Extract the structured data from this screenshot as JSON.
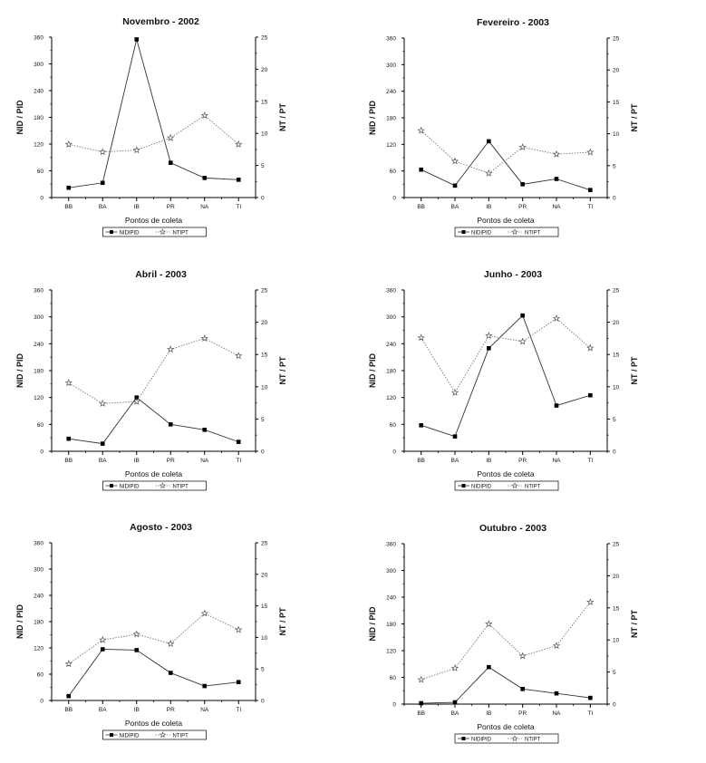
{
  "chart_data": [
    {
      "type": "line",
      "title": "Novembro - 2002",
      "xlabel": "Pontos de coleta",
      "ylabel_left": "NID / PID",
      "ylabel_right": "NT / PT",
      "categories": [
        "BB",
        "BA",
        "IB",
        "PR",
        "NA",
        "TI"
      ],
      "ylim_left": [
        0,
        360
      ],
      "yticks_left": [
        "0",
        "60",
        "120",
        "180",
        "240",
        "300",
        "360"
      ],
      "ylim_right": [
        0,
        25
      ],
      "yticks_right": [
        "0",
        "5",
        "10",
        "15",
        "20",
        "25"
      ],
      "legend": [
        "NIDIPID",
        "NTIPT"
      ],
      "series": [
        {
          "name": "NIDIPID",
          "axis": "left",
          "marker": "square",
          "values": [
            22,
            33,
            355,
            78,
            44,
            40
          ]
        },
        {
          "name": "NTIPT",
          "axis": "right",
          "marker": "star",
          "values": [
            8.3,
            7.1,
            7.4,
            9.3,
            12.8,
            8.3
          ]
        }
      ]
    },
    {
      "type": "line",
      "title": "Fevereiro - 2003",
      "xlabel": "Pontos de coleta",
      "ylabel_left": "NID / PID",
      "ylabel_right": "NT / PT",
      "categories": [
        "BB",
        "BA",
        "IB",
        "PR",
        "NA",
        "TI"
      ],
      "ylim_left": [
        0,
        360
      ],
      "yticks_left": [
        "0",
        "60",
        "120",
        "180",
        "240",
        "300",
        "360"
      ],
      "ylim_right": [
        0,
        25
      ],
      "yticks_right": [
        "0",
        "5",
        "10",
        "15",
        "20",
        "25"
      ],
      "legend": [
        "NIDIPID",
        "NTIPT"
      ],
      "series": [
        {
          "name": "NIDIPID",
          "axis": "left",
          "marker": "square",
          "values": [
            63,
            27,
            127,
            30,
            42,
            17
          ]
        },
        {
          "name": "NTIPT",
          "axis": "right",
          "marker": "star",
          "values": [
            10.5,
            5.7,
            3.8,
            7.9,
            6.8,
            7.1
          ]
        }
      ]
    },
    {
      "type": "line",
      "title": "Abril - 2003",
      "xlabel": "Pontos de coleta",
      "ylabel_left": "NID / PID",
      "ylabel_right": "NT / PT",
      "categories": [
        "BB",
        "BA",
        "IB",
        "PR",
        "NA",
        "TI"
      ],
      "ylim_left": [
        0,
        360
      ],
      "yticks_left": [
        "0",
        "60",
        "120",
        "180",
        "240",
        "300",
        "360"
      ],
      "ylim_right": [
        0,
        25
      ],
      "yticks_right": [
        "0",
        "5",
        "10",
        "15",
        "20",
        "25"
      ],
      "legend": [
        "NIDIPID",
        "NTIPT"
      ],
      "series": [
        {
          "name": "NIDIPID",
          "axis": "left",
          "marker": "square",
          "values": [
            28,
            17,
            120,
            60,
            48,
            21
          ]
        },
        {
          "name": "NTIPT",
          "axis": "right",
          "marker": "star",
          "values": [
            10.6,
            7.4,
            7.7,
            15.8,
            17.5,
            14.8
          ]
        }
      ]
    },
    {
      "type": "line",
      "title": "Junho - 2003",
      "xlabel": "Pontos de coleta",
      "ylabel_left": "NID / PID",
      "ylabel_right": "NT / PT",
      "categories": [
        "BB",
        "BA",
        "IB",
        "PR",
        "NA",
        "TI"
      ],
      "ylim_left": [
        0,
        360
      ],
      "yticks_left": [
        "0",
        "60",
        "120",
        "180",
        "240",
        "300",
        "360"
      ],
      "ylim_right": [
        0,
        25
      ],
      "yticks_right": [
        "0",
        "5",
        "10",
        "15",
        "20",
        "25"
      ],
      "legend": [
        "NIDIPID",
        "NTIPT"
      ],
      "series": [
        {
          "name": "NIDIPID",
          "axis": "left",
          "marker": "square",
          "values": [
            58,
            33,
            230,
            303,
            102,
            125
          ]
        },
        {
          "name": "NTIPT",
          "axis": "right",
          "marker": "star",
          "values": [
            17.6,
            9.1,
            17.9,
            17.0,
            20.6,
            16.0
          ]
        }
      ]
    },
    {
      "type": "line",
      "title": "Agosto - 2003",
      "xlabel": "Pontos de coleta",
      "ylabel_left": "NID / PID",
      "ylabel_right": "NT / PT",
      "categories": [
        "BB",
        "BA",
        "IB",
        "PR",
        "NA",
        "TI"
      ],
      "ylim_left": [
        0,
        360
      ],
      "yticks_left": [
        "0",
        "60",
        "120",
        "180",
        "240",
        "300",
        "360"
      ],
      "ylim_right": [
        0,
        25
      ],
      "yticks_right": [
        "0",
        "5",
        "10",
        "15",
        "20",
        "25"
      ],
      "legend": [
        "NIDIPID",
        "NTIPT"
      ],
      "series": [
        {
          "name": "NIDIPID",
          "axis": "left",
          "marker": "square",
          "values": [
            10,
            117,
            115,
            63,
            33,
            42
          ]
        },
        {
          "name": "NTIPT",
          "axis": "right",
          "marker": "star",
          "values": [
            5.8,
            9.6,
            10.5,
            9.0,
            13.8,
            11.2
          ]
        }
      ]
    },
    {
      "type": "line",
      "title": "Outubro - 2003",
      "xlabel": "Pontos de coleta",
      "ylabel_left": "NID / PID",
      "ylabel_right": "NT / PT",
      "categories": [
        "BB",
        "BA",
        "IB",
        "PR",
        "NA",
        "TI"
      ],
      "ylim_left": [
        0,
        360
      ],
      "yticks_left": [
        "0",
        "60",
        "120",
        "180",
        "240",
        "300",
        "360"
      ],
      "ylim_right": [
        0,
        25
      ],
      "yticks_right": [
        "0",
        "5",
        "10",
        "15",
        "20",
        "25"
      ],
      "legend": [
        "NIDIPID",
        "NTIPT"
      ],
      "series": [
        {
          "name": "NIDIPID",
          "axis": "left",
          "marker": "square",
          "values": [
            2,
            4,
            83,
            34,
            24,
            14
          ]
        },
        {
          "name": "NTIPT",
          "axis": "right",
          "marker": "star",
          "values": [
            3.8,
            5.6,
            12.5,
            7.5,
            9.1,
            15.9
          ]
        }
      ]
    }
  ]
}
